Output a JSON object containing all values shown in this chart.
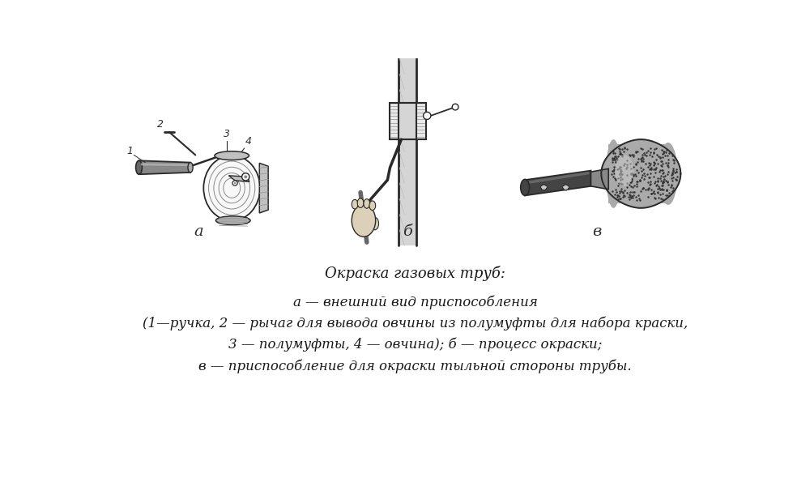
{
  "background_color": "#ffffff",
  "title_line1": "Окраска газовых труб:",
  "caption_lines": [
    "а — внешний вид приспособления",
    "(1—ручка, 2 — рычаг для вывода овчины из полумуфты для набора краски,",
    "3 — полумуфты, 4 — овчина); б — процесс окраски;",
    "в — приспособление для окраски тыльной стороны трубы."
  ],
  "label_a": "а",
  "label_b": "б",
  "label_v": "в",
  "fig_width": 10.0,
  "fig_height": 6.0,
  "dpi": 100,
  "text_color": "#1a1a1a",
  "line_color": "#2a2a2a",
  "fill_light": "#e8e8e8",
  "fill_mid": "#c0c0c0",
  "fill_dark": "#606060",
  "dark_color": "#303030"
}
